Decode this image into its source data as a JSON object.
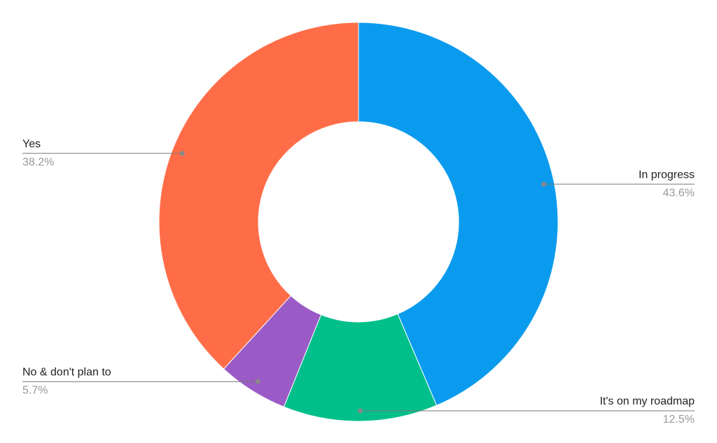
{
  "chart_data": {
    "type": "donut",
    "categories": [
      "In progress",
      "It's on my roadmap",
      "No & don't plan to",
      "Yes"
    ],
    "values": [
      43.6,
      12.5,
      5.7,
      38.2
    ],
    "value_labels": [
      "43.6%",
      "12.5%",
      "5.7%",
      "38.2%"
    ],
    "colors": [
      "#0a9bee",
      "#00bf8a",
      "#9a5bc6",
      "#ff6d48"
    ]
  }
}
